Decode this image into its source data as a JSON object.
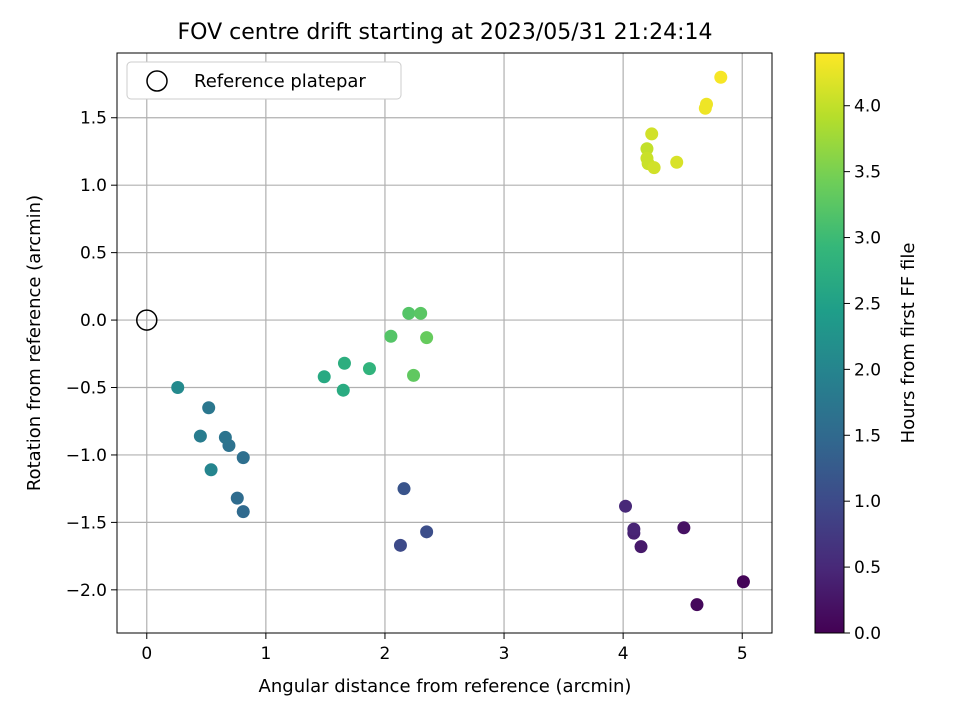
{
  "chart_data": {
    "type": "scatter",
    "title": "FOV centre drift starting at 2023/05/31 21:24:14",
    "xlabel": "Angular distance from reference (arcmin)",
    "ylabel": "Rotation from reference (arcmin)",
    "colorbar_label": "Hours from first FF file",
    "xlim": [
      -0.25,
      5.25
    ],
    "ylim": [
      -2.32,
      1.98
    ],
    "clim": [
      0.0,
      4.4
    ],
    "xticks": [
      0,
      1,
      2,
      3,
      4,
      5
    ],
    "xtick_labels": [
      "0",
      "1",
      "2",
      "3",
      "4",
      "5"
    ],
    "yticks": [
      -2.0,
      -1.5,
      -1.0,
      -0.5,
      0.0,
      0.5,
      1.0,
      1.5
    ],
    "ytick_labels": [
      "−2.0",
      "−1.5",
      "−1.0",
      "−0.5",
      "0.0",
      "0.5",
      "1.0",
      "1.5"
    ],
    "cticks": [
      0.0,
      0.5,
      1.0,
      1.5,
      2.0,
      2.5,
      3.0,
      3.5,
      4.0
    ],
    "ctick_labels": [
      "0.0",
      "0.5",
      "1.0",
      "1.5",
      "2.0",
      "2.5",
      "3.0",
      "3.5",
      "4.0"
    ],
    "grid": true,
    "legend": {
      "position": "upper-left",
      "entries": [
        "Reference platepar"
      ]
    },
    "reference_point": {
      "x": 0.0,
      "y": 0.0
    },
    "colormap": [
      "#440154",
      "#482878",
      "#3e4989",
      "#31688e",
      "#26828e",
      "#1f9e89",
      "#35b779",
      "#6ece58",
      "#b5de2b",
      "#fde725"
    ],
    "points": [
      {
        "x": 5.01,
        "y": -1.94,
        "t": 0.05
      },
      {
        "x": 4.62,
        "y": -2.11,
        "t": 0.1
      },
      {
        "x": 4.51,
        "y": -1.54,
        "t": 0.2
      },
      {
        "x": 4.15,
        "y": -1.68,
        "t": 0.3
      },
      {
        "x": 4.09,
        "y": -1.58,
        "t": 0.4
      },
      {
        "x": 4.09,
        "y": -1.55,
        "t": 0.45
      },
      {
        "x": 4.02,
        "y": -1.38,
        "t": 0.5
      },
      {
        "x": 2.13,
        "y": -1.67,
        "t": 1.0
      },
      {
        "x": 2.35,
        "y": -1.57,
        "t": 1.05
      },
      {
        "x": 2.16,
        "y": -1.25,
        "t": 1.15
      },
      {
        "x": 0.81,
        "y": -1.42,
        "t": 1.5
      },
      {
        "x": 0.76,
        "y": -1.32,
        "t": 1.55
      },
      {
        "x": 0.81,
        "y": -1.02,
        "t": 1.6
      },
      {
        "x": 0.69,
        "y": -0.93,
        "t": 1.65
      },
      {
        "x": 0.66,
        "y": -0.87,
        "t": 1.7
      },
      {
        "x": 0.52,
        "y": -0.65,
        "t": 1.75
      },
      {
        "x": 0.45,
        "y": -0.86,
        "t": 1.85
      },
      {
        "x": 0.54,
        "y": -1.11,
        "t": 2.0
      },
      {
        "x": 0.26,
        "y": -0.5,
        "t": 2.1
      },
      {
        "x": 1.49,
        "y": -0.42,
        "t": 2.65
      },
      {
        "x": 1.65,
        "y": -0.52,
        "t": 2.7
      },
      {
        "x": 1.66,
        "y": -0.32,
        "t": 2.75
      },
      {
        "x": 1.87,
        "y": -0.36,
        "t": 2.85
      },
      {
        "x": 2.05,
        "y": -0.12,
        "t": 3.2
      },
      {
        "x": 2.2,
        "y": 0.05,
        "t": 3.2
      },
      {
        "x": 2.3,
        "y": 0.05,
        "t": 3.25
      },
      {
        "x": 2.24,
        "y": -0.41,
        "t": 3.3
      },
      {
        "x": 2.35,
        "y": -0.13,
        "t": 3.35
      },
      {
        "x": 4.2,
        "y": 1.27,
        "t": 4.0
      },
      {
        "x": 4.2,
        "y": 1.2,
        "t": 4.05
      },
      {
        "x": 4.21,
        "y": 1.16,
        "t": 4.05
      },
      {
        "x": 4.26,
        "y": 1.13,
        "t": 4.1
      },
      {
        "x": 4.24,
        "y": 1.38,
        "t": 4.1
      },
      {
        "x": 4.45,
        "y": 1.17,
        "t": 4.15
      },
      {
        "x": 4.69,
        "y": 1.57,
        "t": 4.3
      },
      {
        "x": 4.7,
        "y": 1.6,
        "t": 4.3
      },
      {
        "x": 4.82,
        "y": 1.8,
        "t": 4.35
      }
    ]
  }
}
